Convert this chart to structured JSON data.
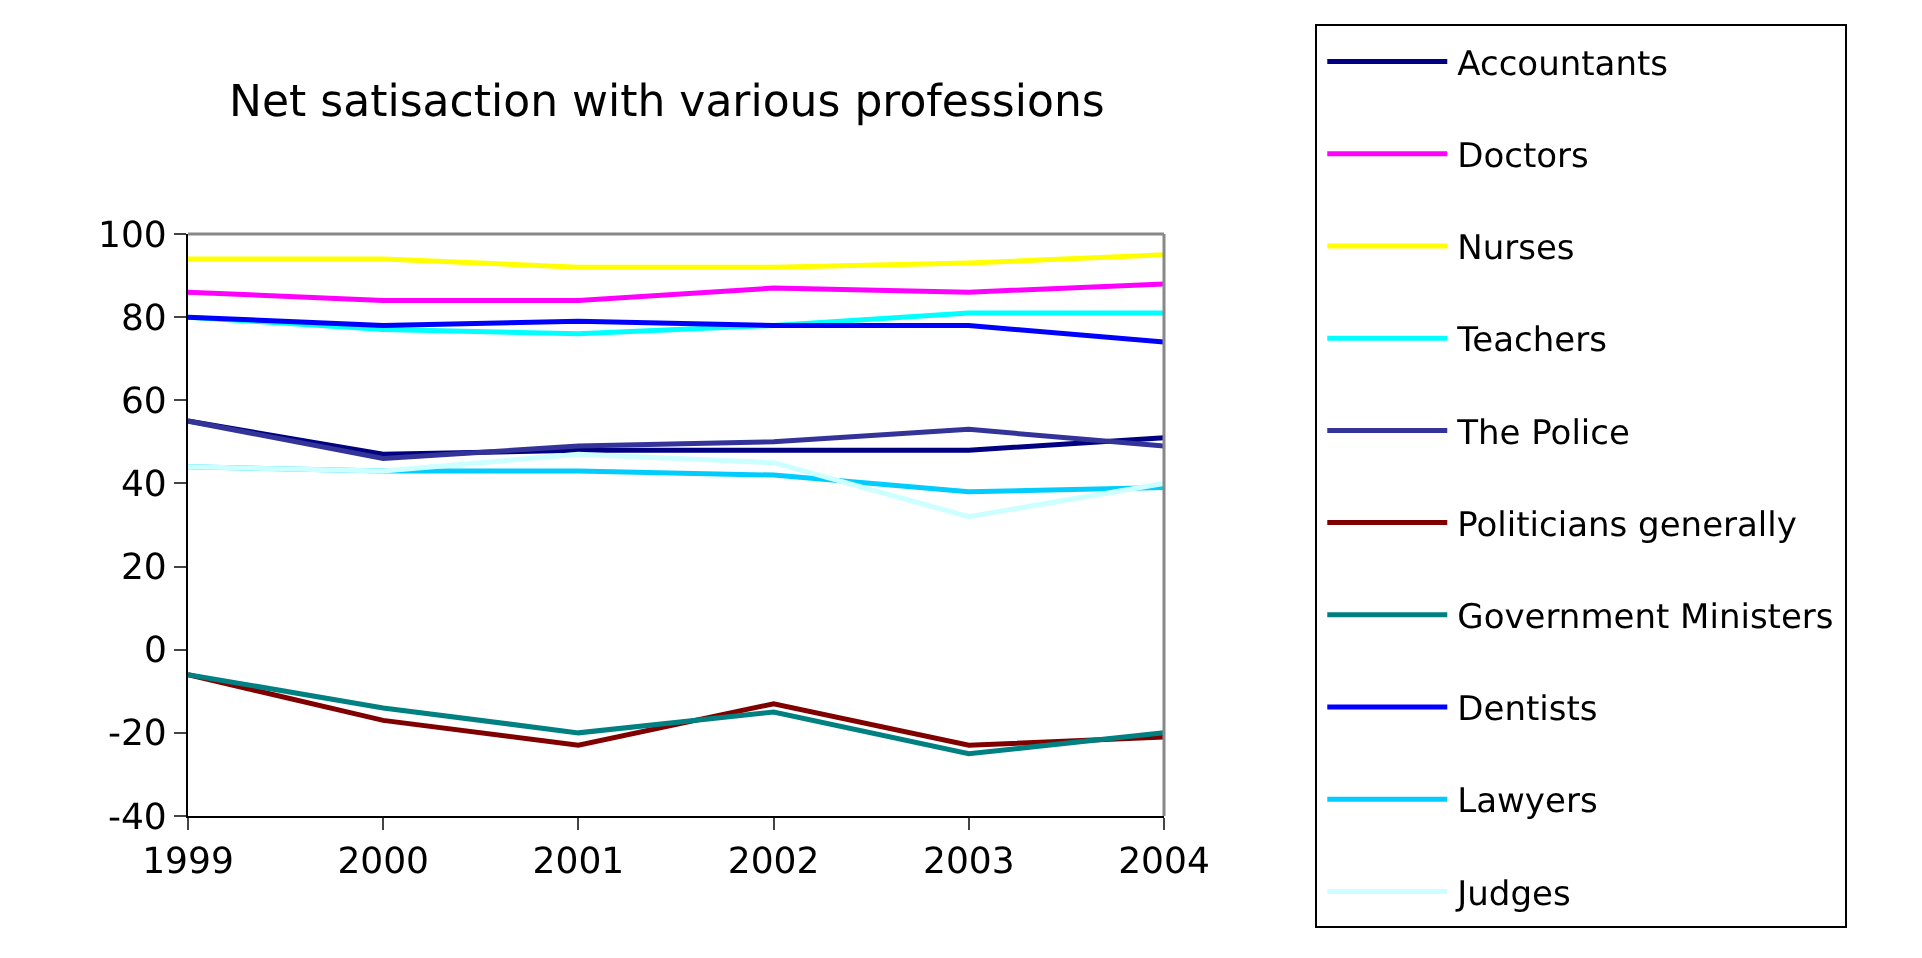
{
  "chart_data": {
    "type": "line",
    "title": "Net satisaction with various professions",
    "x": [
      1999,
      2000,
      2001,
      2002,
      2003,
      2004
    ],
    "xlim": [
      1999,
      2004
    ],
    "xticks": [
      1999,
      2000,
      2001,
      2002,
      2003,
      2004
    ],
    "ylim": [
      -40,
      100
    ],
    "yticks": [
      -40,
      -20,
      0,
      20,
      40,
      60,
      80,
      100
    ],
    "grid": false,
    "legend": "right",
    "marker": "none",
    "line_style": "solid",
    "series": [
      {
        "name": "Accountants",
        "color": "#000080",
        "values": [
          55,
          47,
          48,
          48,
          48,
          51
        ]
      },
      {
        "name": "Doctors",
        "color": "#ff00ff",
        "values": [
          86,
          84,
          84,
          87,
          86,
          88
        ]
      },
      {
        "name": "Nurses",
        "color": "#ffff00",
        "values": [
          94,
          94,
          92,
          92,
          93,
          95
        ]
      },
      {
        "name": "Teachers",
        "color": "#00ffff",
        "values": [
          80,
          77,
          76,
          78,
          81,
          81
        ]
      },
      {
        "name": "The Police",
        "color": "#333399",
        "values": [
          55,
          46,
          49,
          50,
          53,
          49
        ]
      },
      {
        "name": "Politicians generally",
        "color": "#800000",
        "values": [
          -6,
          -17,
          -23,
          -13,
          -23,
          -21
        ]
      },
      {
        "name": "Government Ministers",
        "color": "#008080",
        "values": [
          -6,
          -14,
          -20,
          -15,
          -25,
          -20
        ]
      },
      {
        "name": "Dentists",
        "color": "#0000ff",
        "values": [
          80,
          78,
          79,
          78,
          78,
          74
        ]
      },
      {
        "name": "Lawyers",
        "color": "#00ccff",
        "values": [
          44,
          43,
          43,
          42,
          38,
          39
        ]
      },
      {
        "name": "Judges",
        "color": "#ccffff",
        "values": [
          44,
          43,
          47,
          45,
          32,
          40
        ]
      }
    ]
  }
}
